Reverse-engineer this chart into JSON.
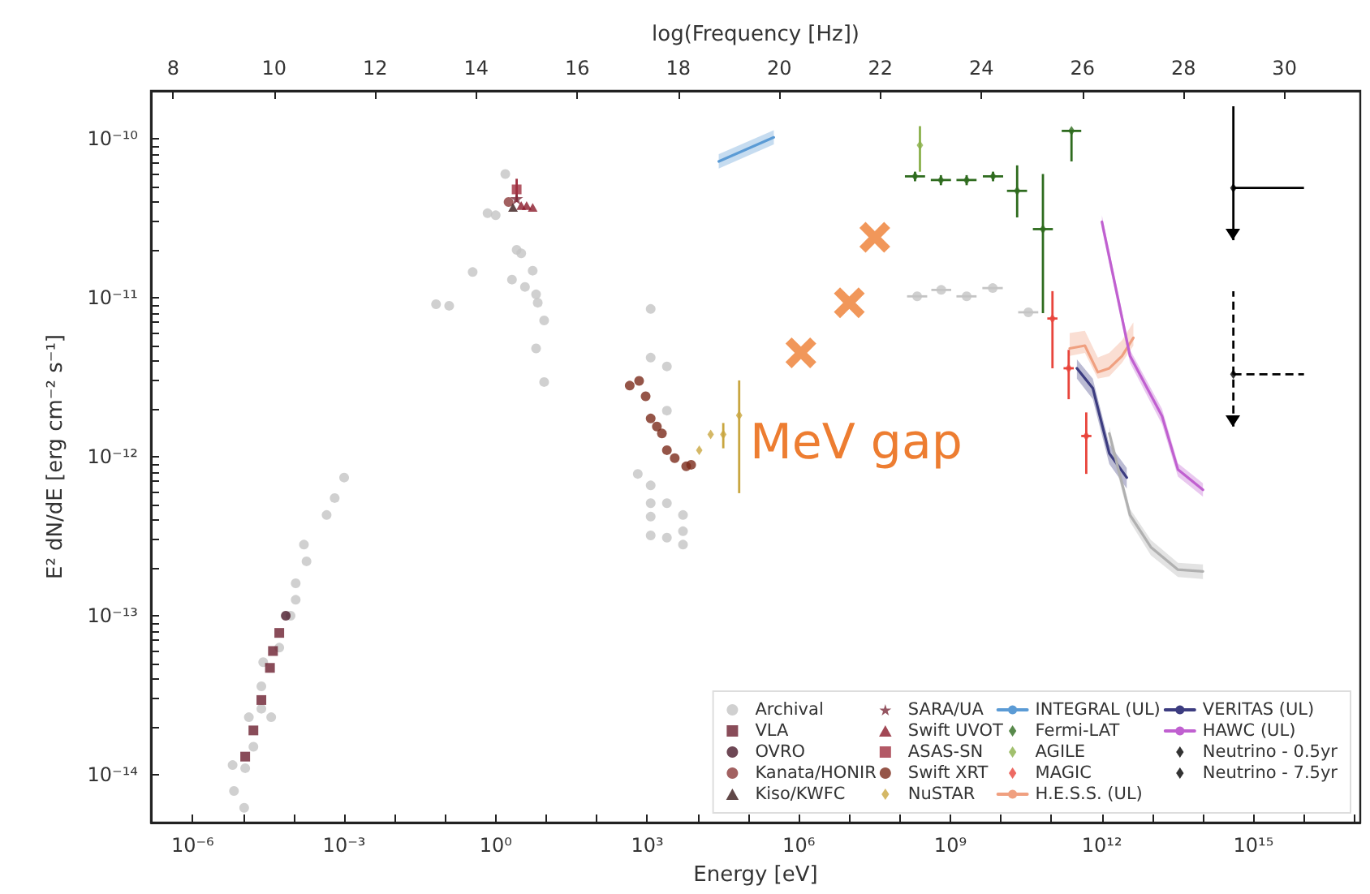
{
  "chart_data": {
    "type": "scatter",
    "xlabel": "Energy [eV]",
    "ylabel": "E² dN/dE [erg cm⁻² s⁻¹]",
    "x2label": "log(Frequency [Hz])",
    "log": "xy",
    "legend": "bottom right",
    "xlim": [
      1.5e-07,
      1.3e+17
    ],
    "ylim": [
      5e-15,
      2e-10
    ],
    "x2lim": [
      7.56,
      31.5
    ],
    "xticks": [
      {
        "value": 1e-06,
        "label": "10⁻⁶"
      },
      {
        "value": 1e-05,
        "label": null
      },
      {
        "value": 0.0001,
        "label": null
      },
      {
        "value": 0.001,
        "label": "10⁻³"
      },
      {
        "value": 0.01,
        "label": null
      },
      {
        "value": 0.1,
        "label": null
      },
      {
        "value": 1,
        "label": "10⁰"
      },
      {
        "value": 10,
        "label": null
      },
      {
        "value": 100,
        "label": null
      },
      {
        "value": 1000.0,
        "label": "10³"
      },
      {
        "value": 10000.0,
        "label": null
      },
      {
        "value": 100000.0,
        "label": null
      },
      {
        "value": 1000000.0,
        "label": "10⁶"
      },
      {
        "value": 10000000.0,
        "label": null
      },
      {
        "value": 100000000.0,
        "label": null
      },
      {
        "value": 1000000000.0,
        "label": "10⁹"
      },
      {
        "value": 10000000000.0,
        "label": null
      },
      {
        "value": 100000000000.0,
        "label": null
      },
      {
        "value": 1000000000000.0,
        "label": "10¹²"
      },
      {
        "value": 10000000000000.0,
        "label": null
      },
      {
        "value": 100000000000000.0,
        "label": null
      },
      {
        "value": 1000000000000000.0,
        "label": "10¹⁵"
      },
      {
        "value": 1e+16,
        "label": null
      },
      {
        "value": 1e+17,
        "label": null
      }
    ],
    "yticks": [
      {
        "value": 1e-14,
        "label": "10⁻¹⁴"
      },
      {
        "value": 2e-14,
        "label": null
      },
      {
        "value": 3e-14,
        "label": null
      },
      {
        "value": 4e-14,
        "label": null
      },
      {
        "value": 5e-14,
        "label": null
      },
      {
        "value": 6e-14,
        "label": null
      },
      {
        "value": 7e-14,
        "label": null
      },
      {
        "value": 8e-14,
        "label": null
      },
      {
        "value": 9e-14,
        "label": null
      },
      {
        "value": 1e-13,
        "label": "10⁻¹³"
      },
      {
        "value": 2e-13,
        "label": null
      },
      {
        "value": 3e-13,
        "label": null
      },
      {
        "value": 4e-13,
        "label": null
      },
      {
        "value": 5e-13,
        "label": null
      },
      {
        "value": 6e-13,
        "label": null
      },
      {
        "value": 7e-13,
        "label": null
      },
      {
        "value": 8e-13,
        "label": null
      },
      {
        "value": 9e-13,
        "label": null
      },
      {
        "value": 1e-12,
        "label": "10⁻¹²"
      },
      {
        "value": 2e-12,
        "label": null
      },
      {
        "value": 3e-12,
        "label": null
      },
      {
        "value": 4e-12,
        "label": null
      },
      {
        "value": 5e-12,
        "label": null
      },
      {
        "value": 6e-12,
        "label": null
      },
      {
        "value": 7e-12,
        "label": null
      },
      {
        "value": 8e-12,
        "label": null
      },
      {
        "value": 9e-12,
        "label": null
      },
      {
        "value": 1e-11,
        "label": "10⁻¹¹"
      },
      {
        "value": 2e-11,
        "label": null
      },
      {
        "value": 3e-11,
        "label": null
      },
      {
        "value": 4e-11,
        "label": null
      },
      {
        "value": 5e-11,
        "label": null
      },
      {
        "value": 6e-11,
        "label": null
      },
      {
        "value": 7e-11,
        "label": null
      },
      {
        "value": 8e-11,
        "label": null
      },
      {
        "value": 9e-11,
        "label": null
      },
      {
        "value": 1e-10,
        "label": "10⁻¹⁰"
      }
    ],
    "x2ticks": [
      8,
      10,
      12,
      14,
      16,
      18,
      20,
      22,
      24,
      26,
      28,
      30
    ],
    "annotations": [
      "MeV gap"
    ],
    "series": [
      {
        "name": "Archival",
        "color": "#c4c4c4",
        "marker": "circle",
        "x": [
          6.2e-06,
          6.6e-06,
          1.05e-05,
          1.1e-05,
          1.3e-05,
          1.6e-05,
          2.3e-05,
          2.3e-05,
          2.5e-05,
          3.6e-05,
          5.2e-05,
          8.7e-05,
          0.00011,
          0.00011,
          0.00016,
          0.00018,
          0.00045,
          0.00065,
          0.001,
          0.066,
          0.12,
          0.35,
          0.69,
          1,
          1.55,
          2.6,
          3.2,
          2.1,
          3.8,
          5.4,
          6.3,
          6.8,
          9.1,
          6.3,
          9.1,
          1170,
          1170,
          2450,
          2450,
          650,
          1170,
          1170,
          1170,
          1170,
          2450,
          2450,
          5100,
          5100,
          5100
        ],
        "values": [
          1.15e-14,
          7.9e-15,
          6.2e-15,
          1.1e-14,
          2.3e-14,
          1.5e-14,
          3.6e-14,
          2.6e-14,
          5.1e-14,
          2.3e-14,
          6.3e-14,
          1e-13,
          1.26e-13,
          1.6e-13,
          2.8e-13,
          2.2e-13,
          4.3e-13,
          5.5e-13,
          7.4e-13,
          9.1e-12,
          8.9e-12,
          1.45e-11,
          3.4e-11,
          3.3e-11,
          6e-11,
          2e-11,
          1.9e-11,
          1.3e-11,
          1.17e-11,
          1.48e-11,
          1.05e-11,
          9.3e-12,
          7.2e-12,
          4.8e-12,
          2.95e-12,
          8.5e-12,
          4.2e-12,
          3.7e-12,
          1.95e-12,
          7.8e-13,
          6.6e-13,
          5.1e-13,
          4.2e-13,
          3.2e-13,
          3.1e-13,
          5.1e-13,
          4.3e-13,
          3.4e-13,
          2.8e-13
        ]
      },
      {
        "name": "VLA",
        "color": "#6b1f2f",
        "marker": "square",
        "x": [
          1.1e-05,
          1.6e-05,
          2.3e-05,
          3.4e-05,
          3.9e-05,
          5.2e-05
        ],
        "values": [
          1.3e-14,
          1.9e-14,
          2.95e-14,
          4.7e-14,
          6e-14,
          7.8e-14
        ]
      },
      {
        "name": "OVRO",
        "color": "#4a1a2a",
        "marker": "circle",
        "x": [
          7e-05
        ],
        "values": [
          1e-13
        ]
      },
      {
        "name": "Kanata/HONIR",
        "color": "#8b3a3a",
        "marker": "circle",
        "x": [
          1.8
        ],
        "values": [
          4e-11
        ]
      },
      {
        "name": "Kiso/KWFC",
        "color": "#3a1a1a",
        "marker": "triangle",
        "x": [
          2.2
        ],
        "values": [
          3.7e-11
        ]
      },
      {
        "name": "SARA/UA",
        "color": "#7a2a3a",
        "marker": "star",
        "x": [
          2.6
        ],
        "values": [
          4.2e-11
        ]
      },
      {
        "name": "Swift UVOT",
        "color": "#8b1a2a",
        "marker": "triangle",
        "x": [
          3.2,
          4.1,
          5.4
        ],
        "values": [
          3.8e-11,
          3.8e-11,
          3.7e-11
        ]
      },
      {
        "name": "ASAS-SN",
        "color": "#a03040",
        "marker": "square",
        "x": [
          2.6
        ],
        "values": [
          4.8e-11
        ],
        "errors": [
          8e-12
        ]
      },
      {
        "name": "Swift XRT",
        "color": "#7a2a1a",
        "marker": "circle",
        "x": [
          450,
          690,
          930,
          1170,
          1550,
          1950,
          2450,
          3500,
          5900,
          7400
        ],
        "values": [
          2.8e-12,
          3e-12,
          2.4e-12,
          1.74e-12,
          1.55e-12,
          1.4e-12,
          1.1e-12,
          9.8e-13,
          8.7e-13,
          8.9e-13
        ]
      },
      {
        "name": "NuSTAR",
        "color": "#c9a640",
        "marker": "diamond",
        "x": [
          10700,
          18000,
          32000,
          66000
        ],
        "values": [
          1.1e-12,
          1.38e-12,
          1.38e-12,
          1.82e-12
        ],
        "errors": [
          null,
          null,
          2.5e-13,
          [
            5.9e-13,
            3.02e-12
          ]
        ]
      },
      {
        "name": "INTEGRAL (UL)",
        "type": "line",
        "color": "#5b9bd5",
        "x": [
          26000,
          320000
        ],
        "values": [
          7.2e-11,
          1.02e-10
        ],
        "lower": [
          6.5e-11,
          9.2e-11
        ],
        "upper": [
          8e-11,
          1.13e-10
        ]
      },
      {
        "name": "Fermi-LAT",
        "color": "#2e6b1e",
        "marker": "diamond",
        "x": [
          200000000.0,
          650000000.0,
          2100000000.0,
          7000000000.0,
          21000000000.0,
          68000000000.0,
          250000000000.0
        ],
        "values": [
          5.8e-11,
          5.5e-11,
          5.5e-11,
          5.8e-11,
          4.7e-11,
          2.7e-11,
          1.12e-10
        ],
        "errors": [
          4e-12,
          4e-12,
          4e-12,
          4e-12,
          [
            3.2e-11,
            6.8e-11
          ],
          [
            8e-12,
            6e-11
          ],
          [
            7.2e-11,
            1.12e-10
          ]
        ],
        "xerrors": [
          [
            126000000.0,
            316000000.0
          ],
          [
            410000000.0,
            1030000000.0
          ],
          [
            1320000000.0,
            3300000000.0
          ],
          [
            4400000000.0,
            11100000000.0
          ],
          [
            13200000000.0,
            33000000000.0
          ],
          [
            43000000000.0,
            107000000000.0
          ],
          [
            160000000000.0,
            390000000000.0
          ]
        ]
      },
      {
        "name": "AGILE",
        "color": "#8ab04a",
        "marker": "diamond",
        "x": [
          250000000.0
        ],
        "values": [
          9.1e-11
        ],
        "errors": [
          2.9e-11
        ]
      },
      {
        "name": "MAGIC",
        "color": "#e8453c",
        "marker": "diamond",
        "x": [
          105000000000.0,
          220000000000.0,
          490000000000.0
        ],
        "values": [
          7.4e-12,
          3.6e-12,
          1.35e-12
        ],
        "errors": [
          [
            3.6e-12,
            1.1e-11
          ],
          [
            2.3e-12,
            4.7e-12
          ],
          [
            7.8e-13,
            1.9e-12
          ]
        ],
        "xerrors": [
          [
            83000000000.0,
            132000000000.0
          ],
          [
            174000000000.0,
            277000000000.0
          ],
          [
            390000000000.0,
            620000000000.0
          ]
        ]
      },
      {
        "name": "H.E.S.S. (UL)",
        "type": "line",
        "color": "#f0a080",
        "x": [
          230000000000.0,
          460000000000.0,
          830000000000.0,
          1400000000000.0,
          2500000000000.0,
          4200000000000.0
        ],
        "values": [
          4.8e-12,
          5e-12,
          3.4e-12,
          3.6e-12,
          4.3e-12,
          5.6e-12
        ],
        "lower": [
          4.3e-12,
          4.5e-12,
          3.1e-12,
          3.2e-12,
          3.9e-12,
          5e-12
        ],
        "upper": [
          6e-12,
          6.2e-12,
          4.2e-12,
          4.5e-12,
          5.4e-12,
          7e-12
        ]
      },
      {
        "name": "VERITAS (UL)",
        "type": "line",
        "color": "#3c3c80",
        "x": [
          320000000000.0,
          660000000000.0,
          1400000000000.0,
          3100000000000.0
        ],
        "values": [
          3.6e-12,
          2.7e-12,
          1.05e-12,
          7.4e-13
        ],
        "lower": [
          3.1e-12,
          2.3e-12,
          9e-13,
          6.3e-13
        ],
        "upper": [
          4.1e-12,
          3.1e-12,
          1.2e-12,
          8.5e-13
        ]
      },
      {
        "name": "HAWC (UL)",
        "type": "line",
        "color": "#c060d0",
        "x": [
          1000000000000.0,
          3600000000000.0,
          15500000000000.0,
          32000000000000.0,
          100000000000000.0
        ],
        "values": [
          3e-11,
          4.3e-12,
          1.8e-12,
          8.3e-13,
          6.2e-13
        ],
        "lower": [
          2.7e-11,
          3.9e-12,
          1.6e-12,
          7.5e-13,
          5.6e-13
        ],
        "upper": [
          3.3e-11,
          4.7e-12,
          2e-12,
          9.1e-13,
          6.8e-13
        ]
      },
      {
        "name": "Neutrino - 0.5yr",
        "color": "#000000",
        "marker": "diamond",
        "line_style": "solid",
        "x": [
          400000000000000.0
        ],
        "values": [
          4.9e-11
        ],
        "errors": [
          [
            2.3e-11,
            1.6e-10
          ]
        ],
        "xerrors": [
          [
            400000000000000.0,
            1e+16
          ]
        ]
      },
      {
        "name": "Neutrino - 7.5yr",
        "color": "#000000",
        "marker": "diamond",
        "line_style": "dashed",
        "x": [
          400000000000000.0
        ],
        "values": [
          3.3e-12
        ],
        "errors": [
          [
            1.55e-12,
            1.1e-11
          ]
        ],
        "xerrors": [
          [
            400000000000000.0,
            1e+16
          ]
        ]
      },
      {
        "color": "#c4c4c4",
        "marker": "circle",
        "xerrors": [
          [
            139000000.0,
            348000000.0
          ],
          [
            420000000.0,
            1040000000.0
          ],
          [
            1320000000.0,
            3300000000.0
          ],
          [
            4300000000.0,
            10900000000.0
          ],
          [
            22000000000.0,
            55000000000.0
          ]
        ],
        "x": [
          220000000.0,
          660000000.0,
          2100000000.0,
          6900000000.0,
          35000000000.0
        ],
        "values": [
          1.02e-11,
          1.12e-11,
          1.02e-11,
          1.15e-11,
          8.1e-12
        ]
      },
      {
        "type": "line",
        "color": "#b0b0b0",
        "x": [
          1400000000000.0,
          3600000000000.0,
          9300000000000.0,
          32000000000000.0,
          100000000000000.0
        ],
        "values": [
          1.4e-12,
          4.3e-13,
          2.7e-13,
          1.95e-13,
          1.9e-13
        ],
        "lower": [
          1.25e-12,
          3.9e-13,
          2.4e-13,
          1.75e-13,
          1.7e-13
        ],
        "upper": [
          1.55e-12,
          4.7e-13,
          3e-13,
          2.15e-13,
          2.1e-13
        ]
      },
      {
        "color": "#ed7d31",
        "marker": "cross",
        "x": [
          1100000.0,
          10000000.0,
          32000000.0
        ],
        "values": [
          4.5e-12,
          9.3e-12,
          2.4e-11
        ]
      }
    ]
  }
}
